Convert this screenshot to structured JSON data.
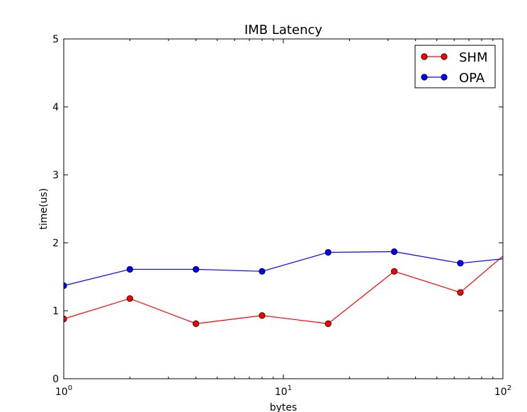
{
  "chart_data": {
    "type": "line",
    "title": "IMB Latency",
    "xlabel": "bytes",
    "ylabel": "time(us)",
    "xscale": "log",
    "xlim": [
      1,
      100
    ],
    "ylim": [
      0,
      5
    ],
    "grid": false,
    "legend_position": "top-right",
    "x_ticks": [
      {
        "value": 1,
        "base": "10",
        "exp": "0"
      },
      {
        "value": 10,
        "base": "10",
        "exp": "1"
      },
      {
        "value": 100,
        "base": "10",
        "exp": "2"
      }
    ],
    "y_ticks": [
      {
        "value": 0,
        "label": "0"
      },
      {
        "value": 1,
        "label": "1"
      },
      {
        "value": 2,
        "label": "2"
      },
      {
        "value": 3,
        "label": "3"
      },
      {
        "value": 4,
        "label": "4"
      },
      {
        "value": 5,
        "label": "5"
      }
    ],
    "x": [
      1,
      2,
      4,
      8,
      16,
      32,
      64,
      128
    ],
    "series": [
      {
        "name": "SHM",
        "color": "#ff0000",
        "values": [
          0.88,
          1.18,
          0.81,
          0.93,
          0.81,
          1.58,
          1.27,
          2.1
        ]
      },
      {
        "name": "OPA",
        "color": "#0000ff",
        "values": [
          1.37,
          1.61,
          1.61,
          1.58,
          1.86,
          1.87,
          1.7,
          1.8
        ]
      }
    ]
  }
}
